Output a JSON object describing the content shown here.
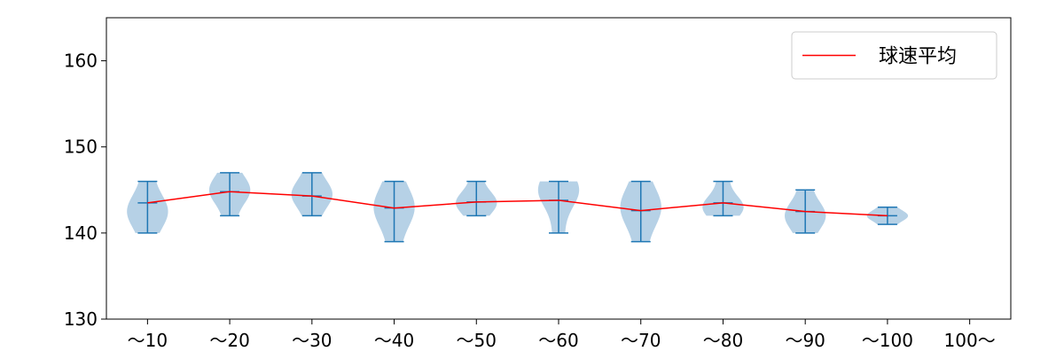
{
  "chart_data": {
    "type": "violin",
    "title": "",
    "xlabel": "",
    "ylabel": "",
    "categories": [
      "～10",
      "～20",
      "～30",
      "～40",
      "～50",
      "～60",
      "～70",
      "～80",
      "～90",
      "～100",
      "100～"
    ],
    "ylim": [
      130,
      165
    ],
    "yticks": [
      130,
      140,
      150,
      160
    ],
    "violins": [
      {
        "category": "～10",
        "min": 140,
        "max": 146,
        "mean": 143.5,
        "density_peak": 142.5
      },
      {
        "category": "～20",
        "min": 142,
        "max": 147,
        "mean": 144.8,
        "density_peak": 145
      },
      {
        "category": "～30",
        "min": 142,
        "max": 147,
        "mean": 144.3,
        "density_peak": 144.5
      },
      {
        "category": "～40",
        "min": 139,
        "max": 146,
        "mean": 142.9,
        "density_peak": 143
      },
      {
        "category": "～50",
        "min": 142,
        "max": 146,
        "mean": 143.6,
        "density_peak": 143.5
      },
      {
        "category": "～60",
        "min": 140,
        "max": 146,
        "mean": 143.8,
        "density_peak": 145
      },
      {
        "category": "～70",
        "min": 139,
        "max": 146,
        "mean": 142.6,
        "density_peak": 143
      },
      {
        "category": "～80",
        "min": 142,
        "max": 146,
        "mean": 143.5,
        "density_peak": 143
      },
      {
        "category": "～90",
        "min": 140,
        "max": 145,
        "mean": 142.5,
        "density_peak": 142
      },
      {
        "category": "～100",
        "min": 141,
        "max": 143,
        "mean": 142.0,
        "density_peak": 142
      }
    ],
    "series": [
      {
        "name": "球速平均",
        "color": "#ff0000",
        "values": [
          143.5,
          144.8,
          144.3,
          142.9,
          143.6,
          143.8,
          142.6,
          143.5,
          142.5,
          142.0,
          null
        ]
      }
    ],
    "legend": {
      "position": "upper right",
      "label": "球速平均"
    },
    "colors": {
      "violin_fill": "#a9c9e2",
      "violin_line": "#1f77b4",
      "mean_line": "#ff0000"
    },
    "grid": false
  }
}
